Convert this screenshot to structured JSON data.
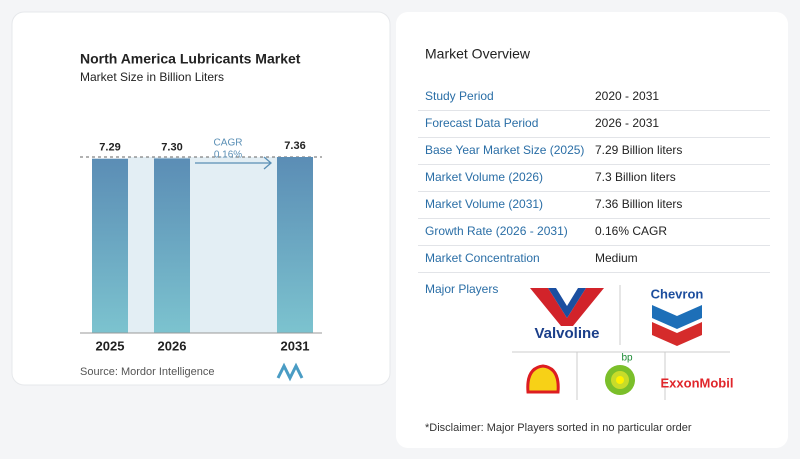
{
  "chart_data": {
    "type": "bar",
    "title": "North America Lubricants Market",
    "subtitle": "Market Size in Billion Liters",
    "categories": [
      "2025",
      "2026",
      "2031"
    ],
    "values": [
      7.29,
      7.3,
      7.36
    ],
    "value_labels": [
      "7.29",
      "7.30",
      "7.36"
    ],
    "annotation": {
      "label": "CAGR",
      "value": "0.16%"
    },
    "source": "Source:  Mordor Intelligence"
  },
  "overview": {
    "title": "Market Overview",
    "rows": [
      [
        "Study Period",
        "2020 - 2031"
      ],
      [
        "Forecast Data Period",
        "2026 - 2031"
      ],
      [
        "Base Year Market Size (2025)",
        "7.29 Billion liters"
      ],
      [
        "Market Volume (2026)",
        "7.3 Billion liters"
      ],
      [
        "Market Volume (2031)",
        "7.36 Billion liters"
      ],
      [
        "Growth Rate (2026 - 2031)",
        "0.16% CAGR"
      ],
      [
        "Market Concentration",
        "Medium"
      ]
    ],
    "players_label": "Major Players",
    "players": [
      "Valvoline",
      "Chevron",
      "bp",
      "ExxonMobil"
    ],
    "disclaimer": "*Disclaimer: Major Players sorted in no particular order"
  }
}
